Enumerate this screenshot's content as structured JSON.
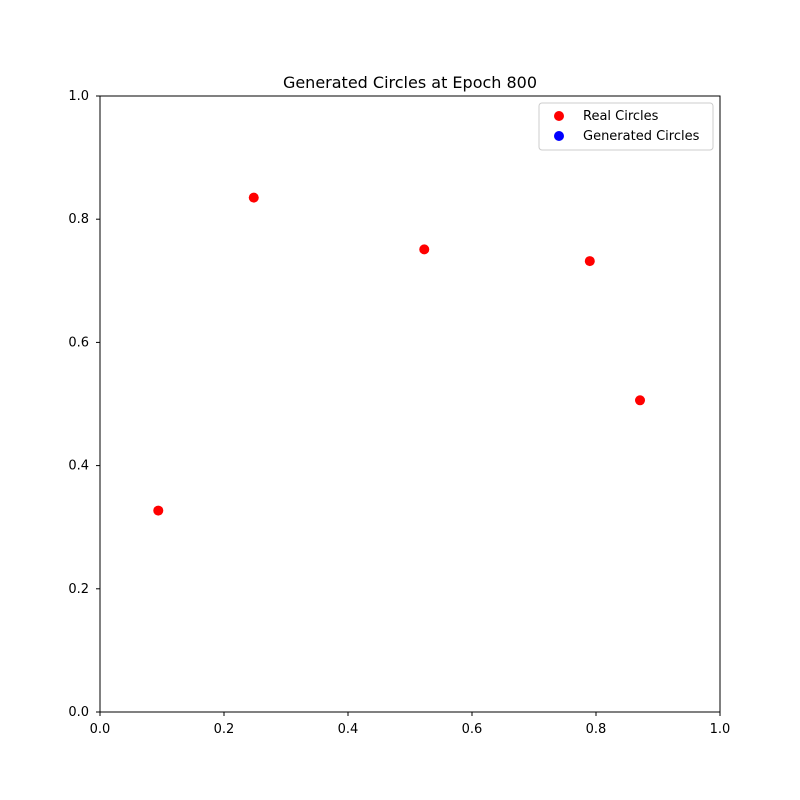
{
  "chart_data": {
    "type": "scatter",
    "title": "Generated Circles at Epoch 800",
    "xlabel": "",
    "ylabel": "",
    "xlim": [
      0,
      1
    ],
    "ylim": [
      0,
      1
    ],
    "x_ticks": [
      "0.0",
      "0.2",
      "0.4",
      "0.6",
      "0.8",
      "1.0"
    ],
    "y_ticks": [
      "0.0",
      "0.2",
      "0.4",
      "0.6",
      "0.8",
      "1.0"
    ],
    "grid": false,
    "legend_position": "top-right",
    "series": [
      {
        "name": "Real Circles",
        "color": "#ff0000",
        "points": [
          {
            "x": 0.094,
            "y": 0.327
          },
          {
            "x": 0.248,
            "y": 0.835
          },
          {
            "x": 0.523,
            "y": 0.751
          },
          {
            "x": 0.79,
            "y": 0.732
          },
          {
            "x": 0.871,
            "y": 0.506
          }
        ]
      },
      {
        "name": "Generated Circles",
        "color": "#0000ff",
        "points": []
      }
    ]
  }
}
